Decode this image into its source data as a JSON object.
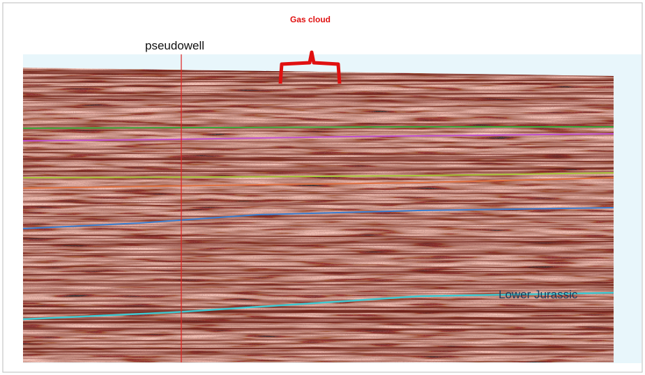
{
  "annotations": {
    "gas_cloud": "Gas cloud",
    "well_label": "pseudowell",
    "horizon_label": "Lower Jurassic"
  }
}
